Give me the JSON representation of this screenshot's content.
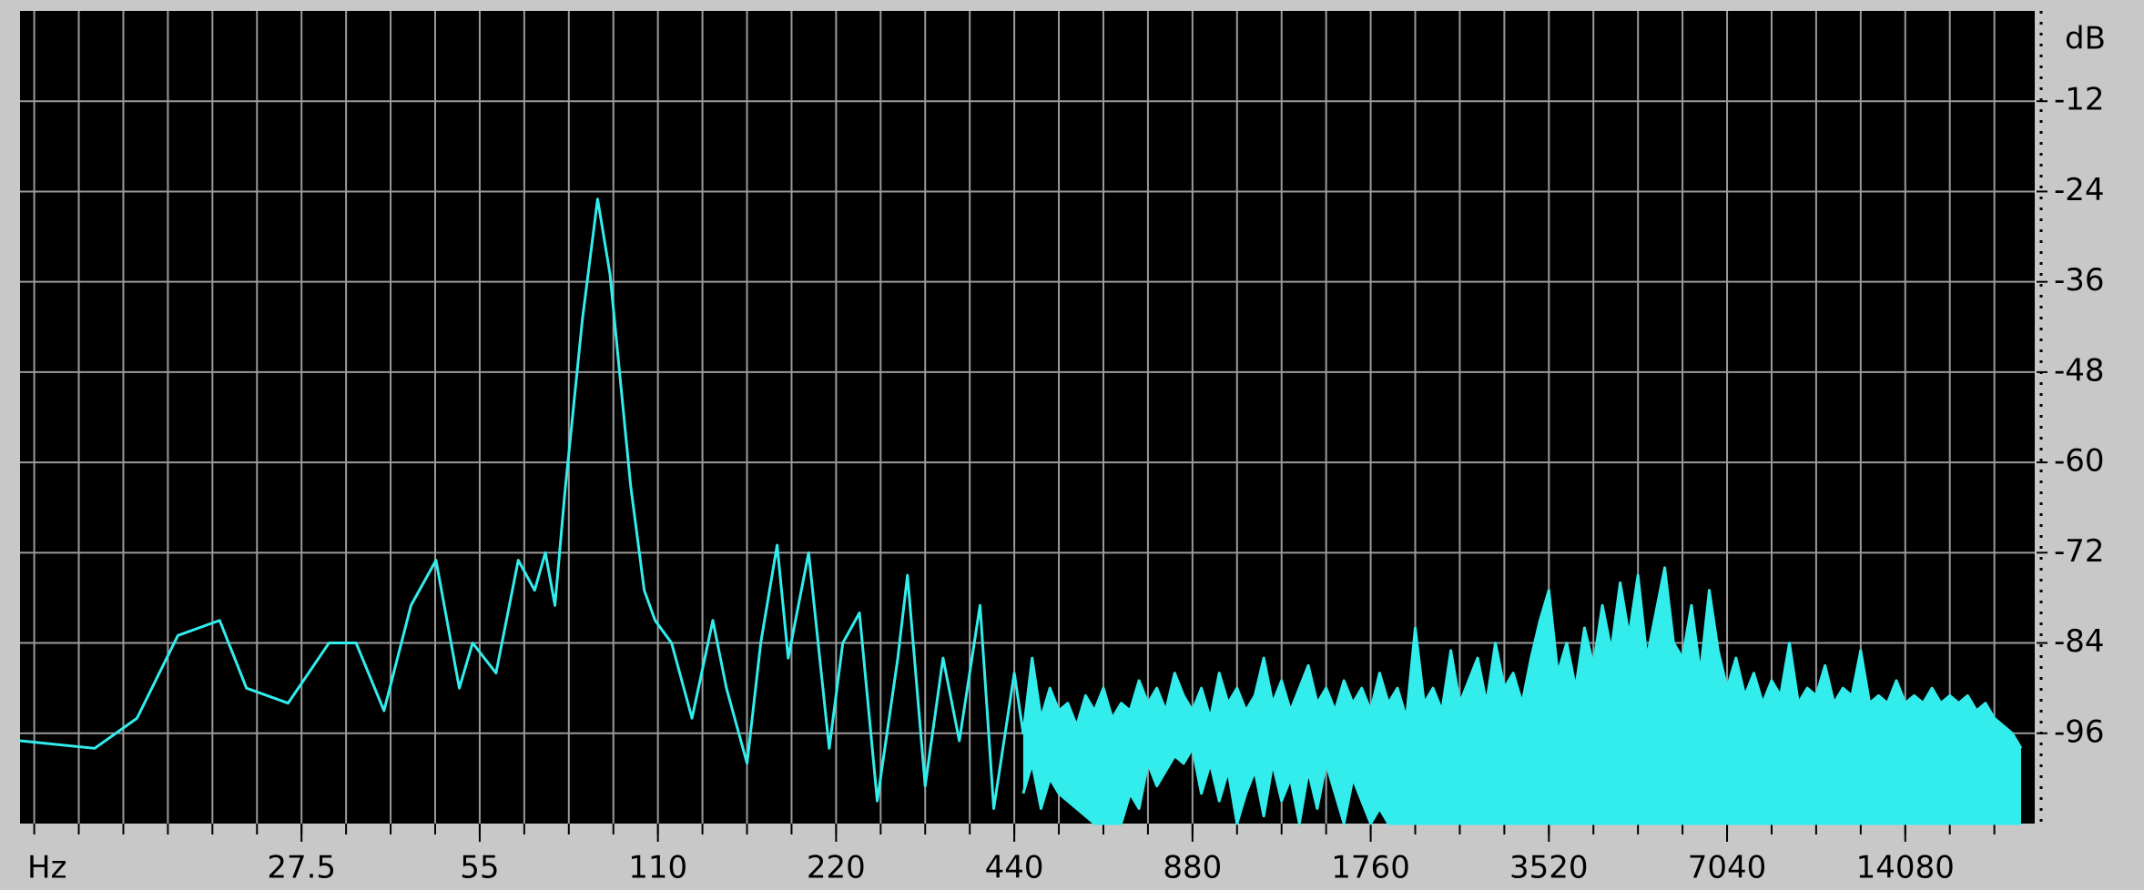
{
  "chart_data": {
    "type": "line",
    "x_label": "Hz",
    "y_label": "dB",
    "x_log": true,
    "grid": true,
    "x_minor_per_octave": 4,
    "xlim": [
      9.2,
      23300
    ],
    "ylim": [
      -108,
      0
    ],
    "xticks": [
      27.5,
      55,
      110,
      220,
      440,
      880,
      1760,
      3520,
      7040,
      14080
    ],
    "yticks": [
      -12,
      -24,
      -36,
      -48,
      -60,
      -72,
      -84,
      -96
    ],
    "x": [
      9.2,
      12.3,
      14.5,
      17.0,
      20.0,
      22.2,
      26.1,
      30.6,
      34.0,
      37.9,
      42.1,
      46.4,
      50.8,
      53.5,
      58.6,
      63.9,
      68.1,
      71.0,
      73.7,
      76.6,
      82.0,
      87.0,
      91.3,
      98.9,
      104.3,
      108.8,
      116.0,
      125.6,
      136.2,
      143.6,
      155.6,
      164.1,
      174.9,
      182.6,
      197.7,
      214.2,
      225.8,
      240.9,
      258.2,
      279.7,
      290.4,
      311.1,
      333.5,
      355.3,
      385.1,
      406.2,
      440,
      455.5,
      471.6,
      488.2,
      505.4,
      523.3,
      541.7,
      560.8,
      580.6,
      601.0,
      622.3,
      644.2,
      666.9,
      690.4,
      714.8,
      740.0,
      766.1,
      793.1,
      821.1,
      850.0,
      880,
      911,
      943.2,
      976.4,
      1010.8,
      1046.5,
      1083.4,
      1121.6,
      1161.2,
      1202.1,
      1244.5,
      1288.4,
      1333.8,
      1380.9,
      1429.6,
      1480,
      1532.2,
      1586.2,
      1642.2,
      1700,
      1760,
      1822,
      1886,
      1953,
      2022,
      2093,
      2167,
      2243,
      2322,
      2404,
      2489,
      2577,
      2668,
      2762,
      2859,
      2960,
      3064,
      3172,
      3284,
      3400,
      3520,
      3644,
      3773,
      3906,
      4043,
      4186,
      4334,
      4487,
      4645,
      4808,
      4978,
      5154,
      5335,
      5524,
      5718,
      5920,
      6129,
      6345,
      6569,
      6800,
      7040,
      7289,
      7545,
      7812,
      8087,
      8372,
      8667,
      8973,
      9290,
      9617,
      9956,
      10307,
      10671,
      11047,
      11437,
      11840,
      12258,
      12690,
      13138,
      13601,
      14080,
      14577,
      15091,
      15623,
      16174,
      16744,
      17335,
      17946,
      18579,
      19234,
      19913,
      20615,
      21342,
      22094
    ],
    "series": [
      {
        "color": "#33ecec",
        "values": [
          -97,
          -98,
          -94,
          -83,
          -81,
          -90,
          -92,
          -84,
          -84,
          -93,
          -79,
          -73,
          -90,
          -84,
          -88,
          -73,
          -77,
          -72,
          -79,
          -64,
          -41,
          -25,
          -35,
          -63,
          -77,
          -81,
          -84,
          -94,
          -81,
          -90,
          -100,
          -84,
          -71,
          -86,
          -72,
          -98,
          -84,
          -80,
          -105,
          -86,
          -75,
          -103,
          -86,
          -97,
          -79,
          -106,
          -88,
          -96,
          -86,
          -94,
          -90,
          -93,
          -92,
          -95,
          -91,
          -93,
          -90,
          -94,
          -92,
          -93,
          -89,
          -92,
          -90,
          -93,
          -88,
          -91,
          -93,
          -90,
          -94,
          -88,
          -92,
          -90,
          -93,
          -91,
          -86,
          -92,
          -89,
          -93,
          -90,
          -87,
          -92,
          -90,
          -93,
          -89,
          -92,
          -90,
          -93,
          -88,
          -92,
          -90,
          -94,
          -82,
          -92,
          -90,
          -93,
          -85,
          -92,
          -89,
          -86,
          -92,
          -84,
          -90,
          -88,
          -92,
          -86,
          -81,
          -77,
          -88,
          -84,
          -90,
          -82,
          -87,
          -79,
          -85,
          -76,
          -83,
          -75,
          -86,
          -80,
          -74,
          -84,
          -86,
          -79,
          -88,
          -77,
          -85,
          -90,
          -86,
          -91,
          -88,
          -92,
          -89,
          -91,
          -84,
          -92,
          -90,
          -91,
          -87,
          -92,
          -90,
          -91,
          -85,
          -92,
          -91,
          -92,
          -89,
          -92,
          -91,
          -92,
          -90,
          -92,
          -91,
          -92,
          -91,
          -93,
          -92,
          -94,
          -95,
          -96,
          -98
        ]
      },
      {
        "color": "#33ecec",
        "values": [
          null,
          null,
          null,
          null,
          null,
          null,
          null,
          null,
          null,
          null,
          null,
          null,
          null,
          null,
          null,
          null,
          null,
          null,
          null,
          null,
          null,
          null,
          null,
          null,
          null,
          null,
          null,
          null,
          null,
          null,
          null,
          null,
          null,
          null,
          null,
          null,
          null,
          null,
          null,
          null,
          null,
          null,
          null,
          null,
          null,
          null,
          null,
          -104,
          -100,
          -106,
          -102,
          -104,
          -105,
          -106,
          -107,
          -108,
          -108,
          -108,
          -108,
          -104,
          -106,
          -100,
          -103,
          -101,
          -99,
          -100,
          -98,
          -104,
          -100,
          -105,
          -101,
          -108,
          -104,
          -101,
          -107,
          -100,
          -105,
          -102,
          -108,
          -101,
          -106,
          -100,
          -104,
          -108,
          -102,
          -105,
          -108,
          -106,
          -108,
          -108,
          -108,
          -108,
          -108,
          -108,
          -108,
          -108,
          -108,
          -108,
          -108,
          -108,
          -108,
          -108,
          -108,
          -108,
          -108,
          -108,
          -108,
          -108,
          -108,
          -108,
          -108,
          -108,
          -108,
          -108,
          -108,
          -108,
          -108,
          -108,
          -108,
          -108,
          -108,
          -108,
          -108,
          -108,
          -108,
          -108,
          -108,
          -108,
          -108,
          -108,
          -108,
          -108,
          -108,
          -108,
          -108,
          -108,
          -108,
          -108,
          -108,
          -108,
          -108,
          -108,
          -108,
          -108,
          -108,
          -108,
          -108,
          -108,
          -108,
          -108,
          -108,
          -108,
          -108,
          -108,
          -108,
          -108,
          -108,
          -108,
          -108,
          -108
        ]
      }
    ]
  }
}
